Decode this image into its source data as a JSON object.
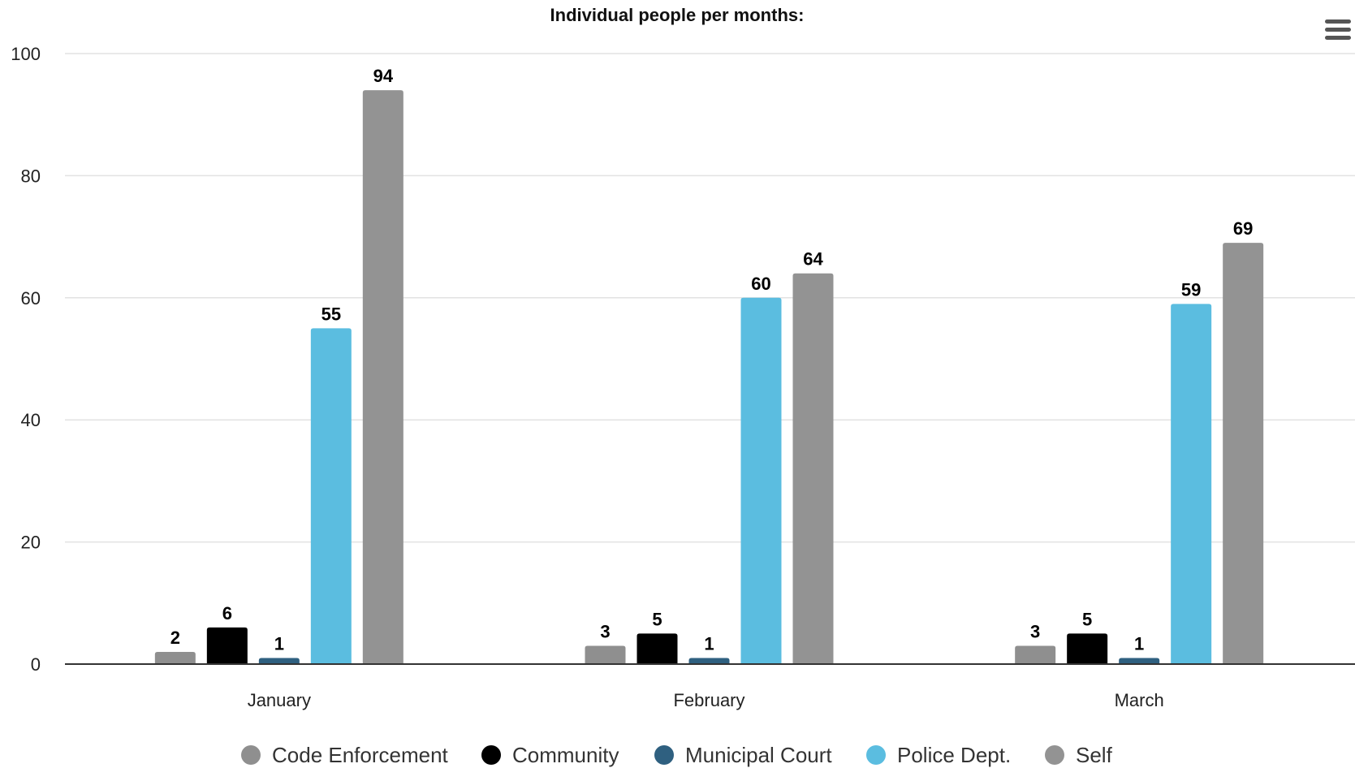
{
  "chart_data": {
    "type": "bar",
    "title": "Individual people per months:",
    "xlabel": "",
    "ylabel": "",
    "categories": [
      "January",
      "February",
      "March"
    ],
    "ylim": [
      0,
      100
    ],
    "yticks": [
      0,
      20,
      40,
      60,
      80,
      100
    ],
    "grid": true,
    "legend_position": "bottom",
    "data_labels": true,
    "series": [
      {
        "name": "Code Enforcement",
        "color": "#8f8f8f",
        "values": [
          2,
          3,
          3
        ]
      },
      {
        "name": "Community",
        "color": "#000000",
        "values": [
          6,
          5,
          5
        ]
      },
      {
        "name": "Municipal Court",
        "color": "#2f6080",
        "values": [
          1,
          1,
          1
        ]
      },
      {
        "name": "Police Dept.",
        "color": "#5bbde0",
        "values": [
          55,
          60,
          59
        ]
      },
      {
        "name": "Self",
        "color": "#939393",
        "values": [
          94,
          64,
          69
        ]
      }
    ]
  },
  "toolbar": {
    "menu_icon": "hamburger-menu-icon"
  }
}
